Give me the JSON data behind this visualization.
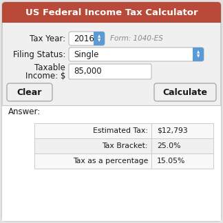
{
  "title": "US Federal Income Tax Calculator",
  "title_bg": "#b94a3a",
  "title_color": "#ffffff",
  "bg_color": "#e2e2e2",
  "body_bg": "#f0f0f0",
  "tax_year_label": "Tax Year:",
  "tax_year_value": "2016",
  "form_label": "Form: 1040-ES",
  "filing_label": "Filing Status:",
  "filing_value": "Single",
  "taxable_label1": "Taxable",
  "taxable_label2": "Income: $",
  "taxable_value": "85,000",
  "btn_clear": "Clear",
  "btn_calc": "Calculate",
  "answer_label": "Answer:",
  "table_rows": [
    [
      "Estimated Tax:",
      "$12,793"
    ],
    [
      "Tax Bracket:",
      "25.0%"
    ],
    [
      "Tax as a percentage",
      "15.05%"
    ]
  ],
  "spinner_color": "#5b9bd5",
  "input_bg": "#ffffff",
  "border_color": "#bbbbbb",
  "text_color": "#1a1a1a",
  "label_color": "#1a1a1a",
  "answer_bg": "#ffffff"
}
